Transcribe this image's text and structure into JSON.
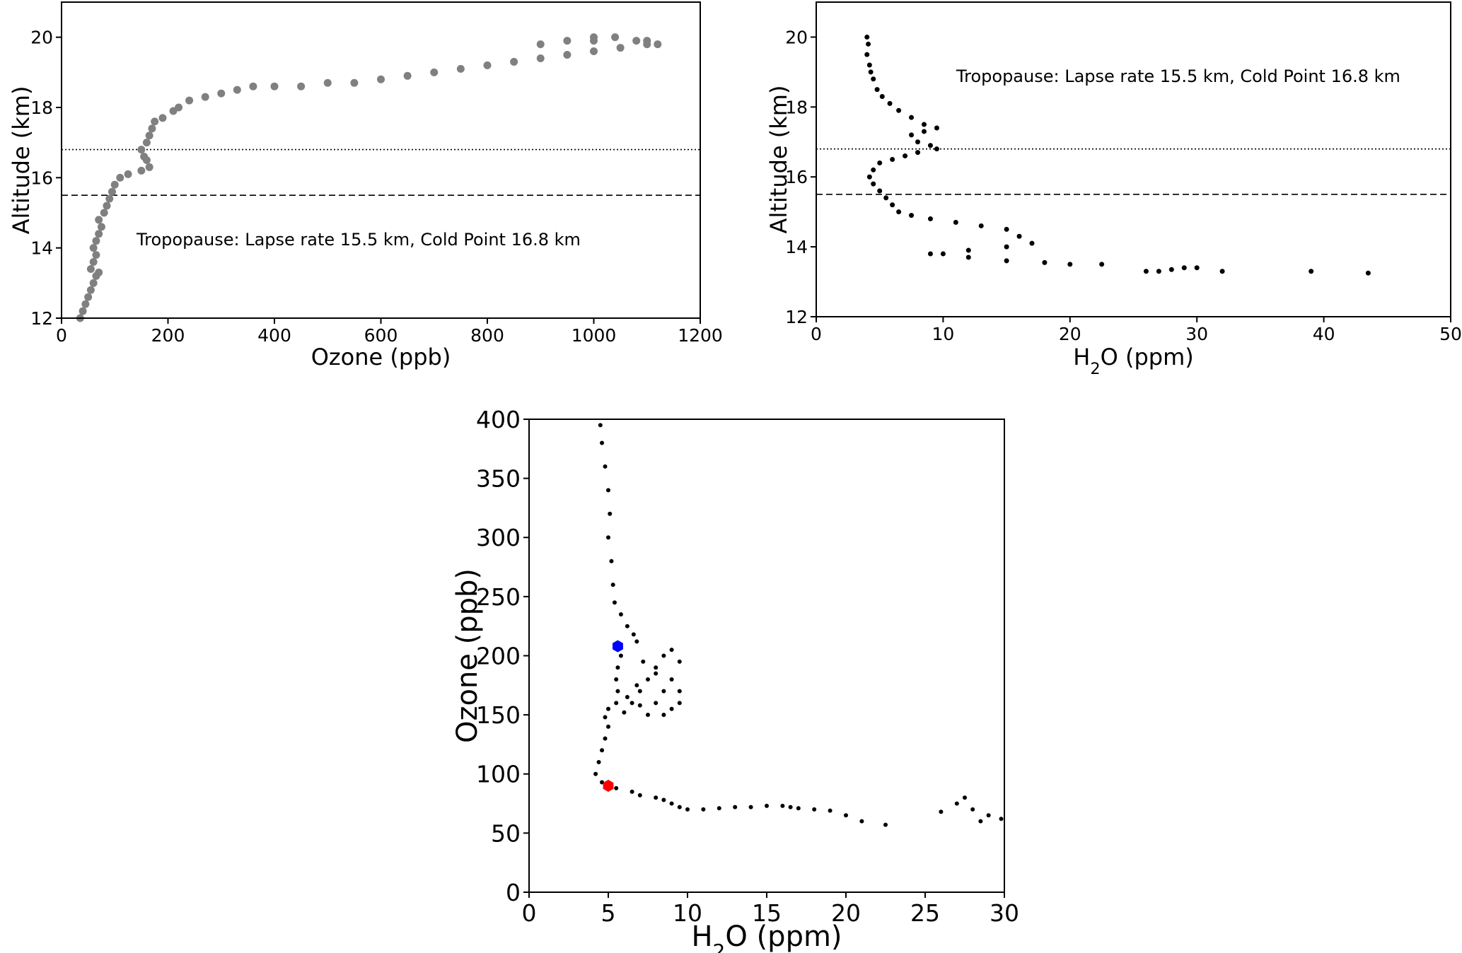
{
  "chart_data": [
    {
      "id": "ozone-altitude",
      "type": "scatter",
      "title": "",
      "xlabel": "Ozone (ppb)",
      "ylabel": "Altitude (km)",
      "xlim": [
        0,
        1200
      ],
      "ylim": [
        12,
        21
      ],
      "xticks": [
        0,
        200,
        400,
        600,
        800,
        1000,
        1200
      ],
      "xtick_labels": [
        "0",
        "200",
        "400",
        "600",
        "800",
        "1000",
        "1200"
      ],
      "yticks": [
        12,
        14,
        16,
        18,
        20
      ],
      "ytick_labels": [
        "12",
        "14",
        "16",
        "18",
        "20"
      ],
      "grid": false,
      "marker_color": "#808080",
      "annotation": "Tropopause: Lapse rate 15.5 km, Cold Point 16.8 km",
      "reference_lines": [
        {
          "y": 15.5,
          "style": "dashed"
        },
        {
          "y": 16.8,
          "style": "dotted"
        }
      ],
      "series": [
        {
          "points": [
            [
              35,
              12.0
            ],
            [
              40,
              12.2
            ],
            [
              45,
              12.4
            ],
            [
              50,
              12.6
            ],
            [
              55,
              12.8
            ],
            [
              60,
              13.0
            ],
            [
              65,
              13.2
            ],
            [
              70,
              13.3
            ],
            [
              55,
              13.4
            ],
            [
              60,
              13.6
            ],
            [
              65,
              13.8
            ],
            [
              60,
              14.0
            ],
            [
              65,
              14.2
            ],
            [
              70,
              14.4
            ],
            [
              75,
              14.6
            ],
            [
              70,
              14.8
            ],
            [
              80,
              15.0
            ],
            [
              85,
              15.2
            ],
            [
              90,
              15.4
            ],
            [
              95,
              15.6
            ],
            [
              100,
              15.8
            ],
            [
              110,
              16.0
            ],
            [
              125,
              16.1
            ],
            [
              150,
              16.2
            ],
            [
              165,
              16.3
            ],
            [
              160,
              16.5
            ],
            [
              155,
              16.6
            ],
            [
              150,
              16.8
            ],
            [
              160,
              17.0
            ],
            [
              165,
              17.2
            ],
            [
              170,
              17.4
            ],
            [
              175,
              17.6
            ],
            [
              190,
              17.7
            ],
            [
              210,
              17.9
            ],
            [
              220,
              18.0
            ],
            [
              240,
              18.2
            ],
            [
              270,
              18.3
            ],
            [
              300,
              18.4
            ],
            [
              330,
              18.5
            ],
            [
              360,
              18.6
            ],
            [
              400,
              18.6
            ],
            [
              450,
              18.6
            ],
            [
              500,
              18.7
            ],
            [
              550,
              18.7
            ],
            [
              600,
              18.8
            ],
            [
              650,
              18.9
            ],
            [
              700,
              19.0
            ],
            [
              750,
              19.1
            ],
            [
              800,
              19.2
            ],
            [
              850,
              19.3
            ],
            [
              900,
              19.4
            ],
            [
              950,
              19.5
            ],
            [
              1000,
              19.6
            ],
            [
              1050,
              19.7
            ],
            [
              1100,
              19.8
            ],
            [
              1120,
              19.8
            ],
            [
              1080,
              19.9
            ],
            [
              1040,
              20.0
            ],
            [
              1000,
              20.0
            ],
            [
              950,
              19.9
            ],
            [
              900,
              19.8
            ],
            [
              1000,
              19.9
            ],
            [
              1100,
              19.9
            ]
          ]
        }
      ]
    },
    {
      "id": "h2o-altitude",
      "type": "scatter",
      "title": "",
      "xlabel_main": "H",
      "xlabel_sub": "2",
      "xlabel_rest": "O (ppm)",
      "ylabel": "Altitude (km)",
      "xlim": [
        0,
        50
      ],
      "ylim": [
        12,
        21
      ],
      "xticks": [
        0,
        10,
        20,
        30,
        40,
        50
      ],
      "xtick_labels": [
        "0",
        "10",
        "20",
        "30",
        "40",
        "50"
      ],
      "yticks": [
        12,
        14,
        16,
        18,
        20
      ],
      "ytick_labels": [
        "12",
        "14",
        "16",
        "18",
        "20"
      ],
      "grid": false,
      "marker_color": "#000000",
      "annotation": "Tropopause: Lapse rate 15.5 km, Cold Point 16.8 km",
      "reference_lines": [
        {
          "y": 15.5,
          "style": "dashed"
        },
        {
          "y": 16.8,
          "style": "dotted"
        }
      ],
      "series": [
        {
          "points": [
            [
              4.0,
              20.0
            ],
            [
              4.1,
              19.8
            ],
            [
              4.0,
              19.5
            ],
            [
              4.2,
              19.2
            ],
            [
              4.3,
              19.0
            ],
            [
              4.5,
              18.8
            ],
            [
              4.8,
              18.5
            ],
            [
              5.2,
              18.3
            ],
            [
              5.8,
              18.1
            ],
            [
              6.5,
              17.9
            ],
            [
              7.5,
              17.7
            ],
            [
              8.5,
              17.5
            ],
            [
              9.5,
              17.4
            ],
            [
              8.5,
              17.3
            ],
            [
              7.5,
              17.2
            ],
            [
              8.0,
              17.0
            ],
            [
              9.0,
              16.9
            ],
            [
              9.5,
              16.8
            ],
            [
              8.0,
              16.7
            ],
            [
              7.0,
              16.6
            ],
            [
              6.0,
              16.5
            ],
            [
              5.0,
              16.4
            ],
            [
              4.5,
              16.2
            ],
            [
              4.2,
              16.0
            ],
            [
              4.5,
              15.8
            ],
            [
              5.0,
              15.6
            ],
            [
              5.5,
              15.4
            ],
            [
              6.0,
              15.2
            ],
            [
              6.5,
              15.0
            ],
            [
              7.5,
              14.9
            ],
            [
              9.0,
              14.8
            ],
            [
              11.0,
              14.7
            ],
            [
              13.0,
              14.6
            ],
            [
              15.0,
              14.5
            ],
            [
              16.0,
              14.3
            ],
            [
              17.0,
              14.1
            ],
            [
              15.0,
              14.0
            ],
            [
              12.0,
              13.9
            ],
            [
              10.0,
              13.8
            ],
            [
              9.0,
              13.8
            ],
            [
              12.0,
              13.7
            ],
            [
              15.0,
              13.6
            ],
            [
              18.0,
              13.55
            ],
            [
              20.0,
              13.5
            ],
            [
              22.5,
              13.5
            ],
            [
              26.0,
              13.3
            ],
            [
              27.0,
              13.3
            ],
            [
              28.0,
              13.35
            ],
            [
              29.0,
              13.4
            ],
            [
              30.0,
              13.4
            ],
            [
              32.0,
              13.3
            ],
            [
              39.0,
              13.3
            ],
            [
              43.5,
              13.25
            ]
          ]
        }
      ]
    },
    {
      "id": "h2o-ozone",
      "type": "scatter",
      "title": "",
      "xlabel_main": "H",
      "xlabel_sub": "2",
      "xlabel_rest": "O (ppm)",
      "ylabel": "Ozone (ppb)",
      "xlim": [
        0,
        30
      ],
      "ylim": [
        0,
        400
      ],
      "xticks": [
        0,
        5,
        10,
        15,
        20,
        25,
        30
      ],
      "xtick_labels": [
        "0",
        "5",
        "10",
        "15",
        "20",
        "25",
        "30"
      ],
      "yticks": [
        0,
        50,
        100,
        150,
        200,
        250,
        300,
        350,
        400
      ],
      "ytick_labels": [
        "0",
        "50",
        "100",
        "150",
        "200",
        "250",
        "300",
        "350",
        "400"
      ],
      "grid": false,
      "marker_color": "#000000",
      "highlight_points": [
        {
          "x": 5.6,
          "y": 208,
          "color": "#0000ff"
        },
        {
          "x": 5.0,
          "y": 90,
          "color": "#ff0000"
        }
      ],
      "series": [
        {
          "points": [
            [
              4.5,
              395
            ],
            [
              4.6,
              380
            ],
            [
              4.8,
              360
            ],
            [
              5.0,
              340
            ],
            [
              5.1,
              320
            ],
            [
              5.0,
              300
            ],
            [
              5.2,
              280
            ],
            [
              5.3,
              260
            ],
            [
              5.4,
              245
            ],
            [
              5.8,
              235
            ],
            [
              6.2,
              225
            ],
            [
              6.6,
              218
            ],
            [
              6.8,
              212
            ],
            [
              5.8,
              200
            ],
            [
              5.6,
              190
            ],
            [
              5.5,
              180
            ],
            [
              5.6,
              170
            ],
            [
              5.5,
              160
            ],
            [
              5.0,
              155
            ],
            [
              4.8,
              148
            ],
            [
              5.0,
              140
            ],
            [
              4.8,
              130
            ],
            [
              4.6,
              120
            ],
            [
              4.4,
              110
            ],
            [
              4.2,
              100
            ],
            [
              4.6,
              93
            ],
            [
              5.5,
              88
            ],
            [
              6.5,
              85
            ],
            [
              7.0,
              82
            ],
            [
              8.0,
              80
            ],
            [
              8.5,
              78
            ],
            [
              9.0,
              75
            ],
            [
              9.5,
              72
            ],
            [
              10.0,
              70
            ],
            [
              11.0,
              70
            ],
            [
              12.0,
              71
            ],
            [
              13.0,
              72
            ],
            [
              14.0,
              72
            ],
            [
              15.0,
              73
            ],
            [
              16.0,
              73
            ],
            [
              16.5,
              72
            ],
            [
              17.0,
              71
            ],
            [
              18.0,
              70
            ],
            [
              19.0,
              69
            ],
            [
              20.0,
              65
            ],
            [
              21.0,
              60
            ],
            [
              22.5,
              57
            ],
            [
              26.0,
              68
            ],
            [
              27.0,
              75
            ],
            [
              27.5,
              80
            ],
            [
              28.0,
              70
            ],
            [
              28.5,
              60
            ],
            [
              29.0,
              65
            ],
            [
              29.8,
              62
            ],
            [
              6.5,
              160
            ],
            [
              7.0,
              170
            ],
            [
              7.5,
              180
            ],
            [
              8.0,
              190
            ],
            [
              8.5,
              200
            ],
            [
              9.0,
              205
            ],
            [
              9.5,
              195
            ],
            [
              9.0,
              180
            ],
            [
              8.5,
              170
            ],
            [
              8.0,
              160
            ],
            [
              7.5,
              150
            ],
            [
              9.0,
              155
            ],
            [
              9.5,
              160
            ],
            [
              9.5,
              170
            ],
            [
              8.0,
              185
            ],
            [
              7.2,
              195
            ],
            [
              6.8,
              175
            ],
            [
              6.2,
              165
            ],
            [
              6.0,
              152
            ],
            [
              7.0,
              158
            ],
            [
              8.5,
              150
            ]
          ]
        }
      ]
    }
  ]
}
